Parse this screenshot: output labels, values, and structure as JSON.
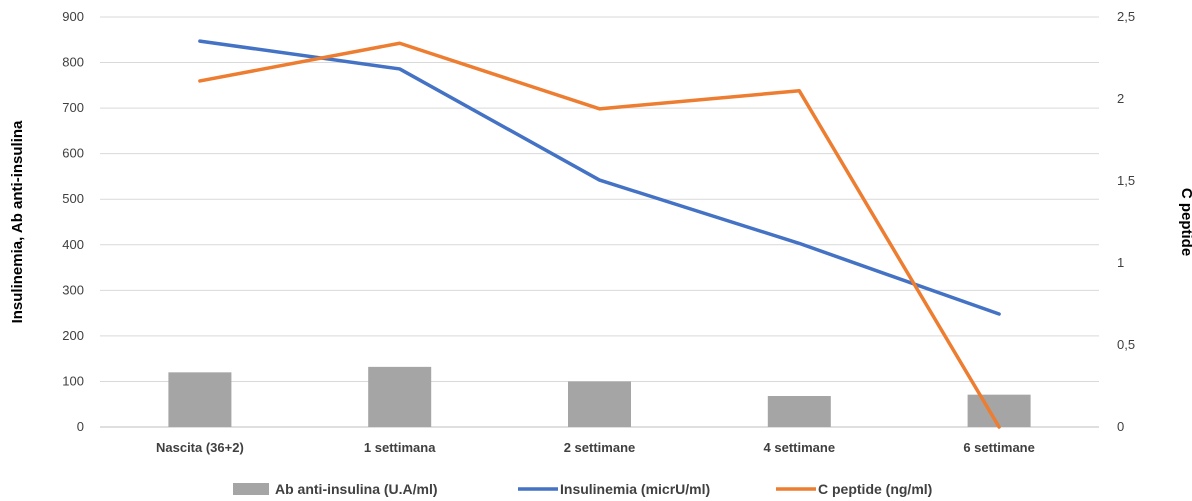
{
  "chart_data": {
    "type": "bar+line",
    "categories": [
      "Nascita (36+2)",
      "1 settimana",
      "2 settimane",
      "4 settimane",
      "6 settimane"
    ],
    "y_left": {
      "label": "Insulinemia, Ab anti-insulina",
      "range": [
        0,
        900
      ],
      "ticks": [
        0,
        100,
        200,
        300,
        400,
        500,
        600,
        700,
        800,
        900
      ],
      "tick_labels": [
        "0",
        "100",
        "200",
        "300",
        "400",
        "500",
        "600",
        "700",
        "800",
        "900"
      ]
    },
    "y_right": {
      "label": "C peptide",
      "range": [
        0,
        2.5
      ],
      "ticks": [
        0,
        0.5,
        1,
        1.5,
        2,
        2.5
      ],
      "tick_labels": [
        "0",
        "0,5",
        "1",
        "1,5",
        "2",
        "2,5"
      ]
    },
    "grid": true,
    "legend_position": "bottom",
    "series": [
      {
        "name": "Ab anti-insulina (U.A/ml)",
        "kind": "bar",
        "axis": "left",
        "color": "#A5A5A5",
        "values": [
          120,
          132,
          100,
          68,
          71
        ]
      },
      {
        "name": "Insulinemia (micrU/ml)",
        "kind": "line",
        "axis": "left",
        "color": "#4472C4",
        "values": [
          847,
          786,
          542,
          403,
          248
        ]
      },
      {
        "name": "C peptide (ng/ml)",
        "kind": "line",
        "axis": "right",
        "color": "#ED7D31",
        "values": [
          2.11,
          2.34,
          1.94,
          2.05,
          0.0
        ]
      }
    ]
  }
}
